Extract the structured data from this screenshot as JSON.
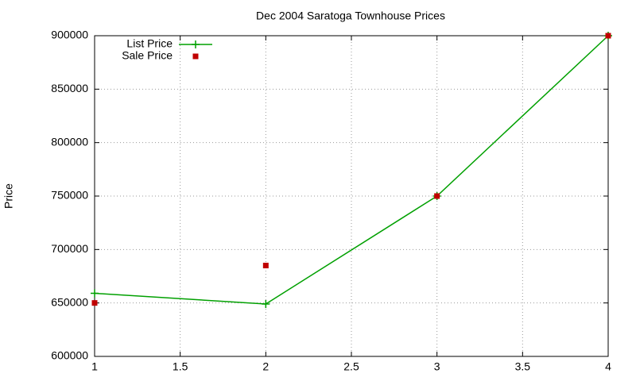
{
  "chart_data": {
    "type": "line",
    "title": "Dec 2004 Saratoga Townhouse Prices",
    "y_label": "Price",
    "x": [
      1,
      2,
      3,
      4
    ],
    "series": [
      {
        "name": "List Price",
        "color": "#00a000",
        "mode": "lines+points",
        "values": [
          659000,
          649000,
          750000,
          900000
        ]
      },
      {
        "name": "Sale Price",
        "color": "#c00000",
        "mode": "points",
        "values": [
          650000,
          685000,
          750000,
          900000
        ]
      }
    ],
    "xlim": [
      1,
      4
    ],
    "xticks": [
      1,
      1.5,
      2,
      2.5,
      3,
      3.5,
      4
    ],
    "ylim": [
      600000,
      900000
    ],
    "yticks": [
      600000,
      650000,
      700000,
      750000,
      800000,
      850000,
      900000
    ],
    "grid": true,
    "legend": "top-left"
  }
}
